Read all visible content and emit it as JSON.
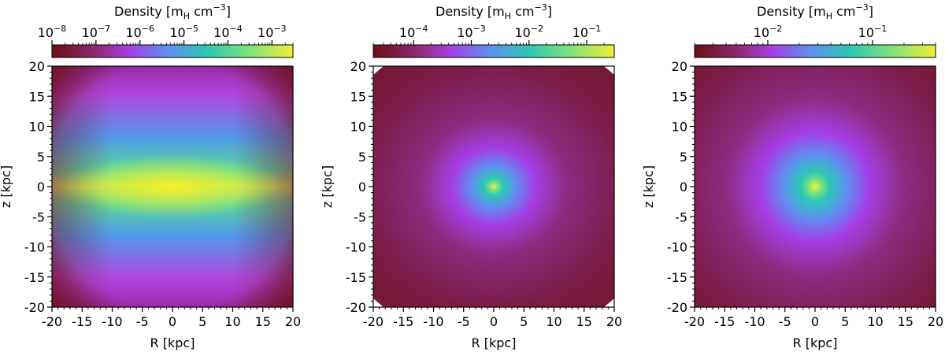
{
  "chart_data": [
    {
      "type": "heatmap",
      "title": "",
      "xlabel": "R [kpc]",
      "ylabel": "z [kpc]",
      "xlim": [
        -20,
        20
      ],
      "ylim": [
        -20,
        20
      ],
      "xticks": [
        -20,
        -15,
        -10,
        -5,
        0,
        5,
        10,
        15,
        20
      ],
      "yticks": [
        -20,
        -15,
        -10,
        -5,
        0,
        5,
        10,
        15,
        20
      ],
      "xticklabels": [
        "-20",
        "-15",
        "-10",
        "-5",
        "0",
        "5",
        "10",
        "15",
        "20"
      ],
      "yticklabels": [
        "-20",
        "-15",
        "-10",
        "-5",
        "0",
        "5",
        "10",
        "15",
        "20"
      ],
      "colorbar": {
        "label_main": "Density [m",
        "label_sub": "H",
        "label_unit": " cm",
        "label_exp": "−3",
        "label_end": "]",
        "scale": "log",
        "range": [
          1e-08,
          0.003
        ],
        "ticks": [
          {
            "base": "10",
            "exp": "−8",
            "value": 1e-08
          },
          {
            "base": "10",
            "exp": "−7",
            "value": 1e-07
          },
          {
            "base": "10",
            "exp": "−6",
            "value": 1e-06
          },
          {
            "base": "10",
            "exp": "−5",
            "value": 1e-05
          },
          {
            "base": "10",
            "exp": "−4",
            "value": 0.0001
          },
          {
            "base": "10",
            "exp": "−3",
            "value": 0.001
          }
        ]
      },
      "colormap": "purple-blue-green-yellow on dark red",
      "morphology": "flattened disk; density peaks at center and decreases along z, spreading widely along R",
      "peak_at": [
        0,
        0
      ]
    },
    {
      "type": "heatmap",
      "title": "",
      "xlabel": "R [kpc]",
      "ylabel": "z [kpc]",
      "xlim": [
        -20,
        20
      ],
      "ylim": [
        -20,
        20
      ],
      "xticks": [
        -20,
        -15,
        -10,
        -5,
        0,
        5,
        10,
        15,
        20
      ],
      "yticks": [
        -20,
        -15,
        -10,
        -5,
        0,
        5,
        10,
        15,
        20
      ],
      "xticklabels": [
        "-20",
        "-15",
        "-10",
        "-5",
        "0",
        "5",
        "10",
        "15",
        "20"
      ],
      "yticklabels": [
        "-20",
        "-15",
        "-10",
        "-5",
        "0",
        "5",
        "10",
        "15",
        "20"
      ],
      "colorbar": {
        "label_main": "Density [m",
        "label_sub": "H",
        "label_unit": " cm",
        "label_exp": "−3",
        "label_end": "]",
        "scale": "log",
        "range": [
          2e-05,
          0.3
        ],
        "ticks": [
          {
            "base": "10",
            "exp": "−4",
            "value": 0.0001
          },
          {
            "base": "10",
            "exp": "−3",
            "value": 0.001
          },
          {
            "base": "10",
            "exp": "−2",
            "value": 0.01
          },
          {
            "base": "10",
            "exp": "−1",
            "value": 0.1
          }
        ]
      },
      "colormap": "purple-blue-green-yellow on dark red",
      "morphology": "compact, slightly flattened central concentration",
      "peak_at": [
        0,
        0
      ]
    },
    {
      "type": "heatmap",
      "title": "",
      "xlabel": "R [kpc]",
      "ylabel": "z [kpc]",
      "xlim": [
        -20,
        20
      ],
      "ylim": [
        -20,
        20
      ],
      "xticks": [
        -20,
        -15,
        -10,
        -5,
        0,
        5,
        10,
        15,
        20
      ],
      "yticks": [
        -20,
        -15,
        -10,
        -5,
        0,
        5,
        10,
        15,
        20
      ],
      "xticklabels": [
        "-20",
        "-15",
        "-10",
        "-5",
        "0",
        "5",
        "10",
        "15",
        "20"
      ],
      "yticklabels": [
        "-20",
        "-15",
        "-10",
        "-5",
        "0",
        "5",
        "10",
        "15",
        "20"
      ],
      "colorbar": {
        "label_main": "Density [m",
        "label_sub": "H",
        "label_unit": " cm",
        "label_exp": "−3",
        "label_end": "]",
        "scale": "log",
        "range": [
          0.002,
          0.4
        ],
        "ticks": [
          {
            "base": "10",
            "exp": "−2",
            "value": 0.01
          },
          {
            "base": "10",
            "exp": "−1",
            "value": 0.1
          }
        ]
      },
      "colormap": "purple-blue-green-yellow on dark red",
      "morphology": "nearly spherical central concentration",
      "peak_at": [
        0,
        0
      ]
    }
  ]
}
